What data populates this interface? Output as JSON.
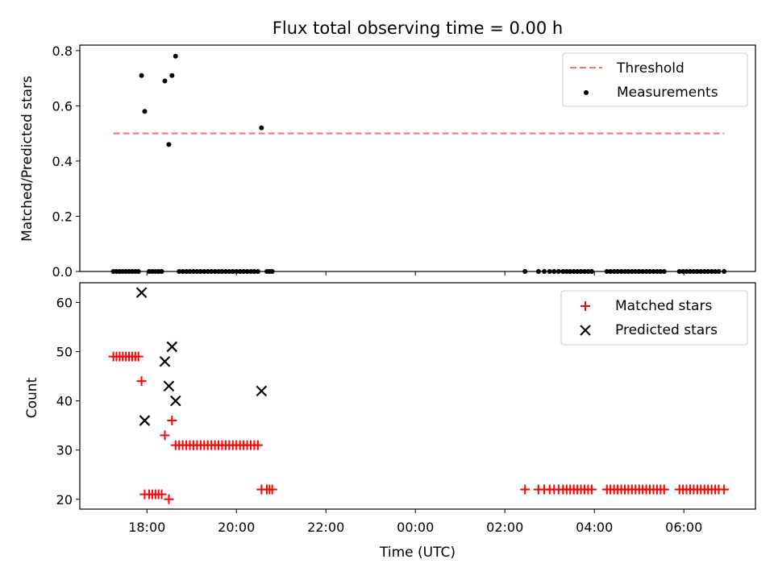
{
  "chart_data": [
    {
      "type": "scatter",
      "title": "Flux total observing time = 0.00 h",
      "xlabel": "",
      "ylabel": "Matched/Predicted stars",
      "xlim": [
        16.5,
        31.6
      ],
      "ylim": [
        0.0,
        0.82
      ],
      "x_unit": "hours since 00:00 of the first night (UTC)",
      "yticks": [
        0.0,
        0.2,
        0.4,
        0.6,
        0.8
      ],
      "ytick_labels": [
        "0.0",
        "0.2",
        "0.4",
        "0.6",
        "0.8"
      ],
      "legend": {
        "position": "top-right",
        "entries": [
          "Threshold",
          "Measurements"
        ]
      },
      "threshold": {
        "name": "Threshold",
        "y": 0.5,
        "x_range": [
          17.25,
          30.9
        ],
        "color": "#ff7070",
        "style": "dashed"
      },
      "series": [
        {
          "name": "Measurements",
          "color": "#000000",
          "marker": "dot",
          "points": [
            [
              17.25,
              0.0
            ],
            [
              17.32,
              0.0
            ],
            [
              17.39,
              0.0
            ],
            [
              17.46,
              0.0
            ],
            [
              17.53,
              0.0
            ],
            [
              17.6,
              0.0
            ],
            [
              17.67,
              0.0
            ],
            [
              17.74,
              0.0
            ],
            [
              17.81,
              0.0
            ],
            [
              17.88,
              0.71
            ],
            [
              17.95,
              0.58
            ],
            [
              18.05,
              0.0
            ],
            [
              18.12,
              0.0
            ],
            [
              18.19,
              0.0
            ],
            [
              18.26,
              0.0
            ],
            [
              18.33,
              0.0
            ],
            [
              18.4,
              0.69
            ],
            [
              18.49,
              0.46
            ],
            [
              18.56,
              0.71
            ],
            [
              18.64,
              0.78
            ],
            [
              18.72,
              0.0
            ],
            [
              18.8,
              0.0
            ],
            [
              18.88,
              0.0
            ],
            [
              18.96,
              0.0
            ],
            [
              19.04,
              0.0
            ],
            [
              19.12,
              0.0
            ],
            [
              19.2,
              0.0
            ],
            [
              19.28,
              0.0
            ],
            [
              19.36,
              0.0
            ],
            [
              19.44,
              0.0
            ],
            [
              19.52,
              0.0
            ],
            [
              19.6,
              0.0
            ],
            [
              19.68,
              0.0
            ],
            [
              19.76,
              0.0
            ],
            [
              19.84,
              0.0
            ],
            [
              19.92,
              0.0
            ],
            [
              20.0,
              0.0
            ],
            [
              20.08,
              0.0
            ],
            [
              20.16,
              0.0
            ],
            [
              20.24,
              0.0
            ],
            [
              20.32,
              0.0
            ],
            [
              20.4,
              0.0
            ],
            [
              20.48,
              0.0
            ],
            [
              20.56,
              0.52
            ],
            [
              20.68,
              0.0
            ],
            [
              20.74,
              0.0
            ],
            [
              20.8,
              0.0
            ],
            [
              26.45,
              0.0
            ],
            [
              26.75,
              0.0
            ],
            [
              26.88,
              0.0
            ],
            [
              27.0,
              0.0
            ],
            [
              27.1,
              0.0
            ],
            [
              27.2,
              0.0
            ],
            [
              27.3,
              0.0
            ],
            [
              27.38,
              0.0
            ],
            [
              27.46,
              0.0
            ],
            [
              27.54,
              0.0
            ],
            [
              27.62,
              0.0
            ],
            [
              27.7,
              0.0
            ],
            [
              27.78,
              0.0
            ],
            [
              27.86,
              0.0
            ],
            [
              27.94,
              0.0
            ],
            [
              28.28,
              0.0
            ],
            [
              28.36,
              0.0
            ],
            [
              28.44,
              0.0
            ],
            [
              28.52,
              0.0
            ],
            [
              28.6,
              0.0
            ],
            [
              28.68,
              0.0
            ],
            [
              28.76,
              0.0
            ],
            [
              28.84,
              0.0
            ],
            [
              28.92,
              0.0
            ],
            [
              29.0,
              0.0
            ],
            [
              29.08,
              0.0
            ],
            [
              29.16,
              0.0
            ],
            [
              29.24,
              0.0
            ],
            [
              29.32,
              0.0
            ],
            [
              29.4,
              0.0
            ],
            [
              29.48,
              0.0
            ],
            [
              29.56,
              0.0
            ],
            [
              29.9,
              0.0
            ],
            [
              29.98,
              0.0
            ],
            [
              30.06,
              0.0
            ],
            [
              30.14,
              0.0
            ],
            [
              30.22,
              0.0
            ],
            [
              30.3,
              0.0
            ],
            [
              30.38,
              0.0
            ],
            [
              30.46,
              0.0
            ],
            [
              30.54,
              0.0
            ],
            [
              30.62,
              0.0
            ],
            [
              30.7,
              0.0
            ],
            [
              30.78,
              0.0
            ],
            [
              30.9,
              0.0
            ]
          ]
        }
      ]
    },
    {
      "type": "scatter",
      "title": "",
      "xlabel": "Time (UTC)",
      "ylabel": "Count",
      "xlim": [
        16.5,
        31.6
      ],
      "ylim": [
        18.0,
        64.0
      ],
      "x_unit": "hours since 00:00 of the first night (UTC)",
      "xticks": [
        18,
        20,
        22,
        24,
        26,
        28,
        30
      ],
      "xtick_labels": [
        "18:00",
        "20:00",
        "22:00",
        "00:00",
        "02:00",
        "04:00",
        "06:00"
      ],
      "yticks": [
        20,
        30,
        40,
        50,
        60
      ],
      "ytick_labels": [
        "20",
        "30",
        "40",
        "50",
        "60"
      ],
      "legend": {
        "position": "top-right",
        "entries": [
          "Matched stars",
          "Predicted stars"
        ]
      },
      "series": [
        {
          "name": "Matched stars",
          "color": "#ff0000",
          "marker": "plus",
          "points": [
            [
              17.25,
              49
            ],
            [
              17.32,
              49
            ],
            [
              17.39,
              49
            ],
            [
              17.46,
              49
            ],
            [
              17.53,
              49
            ],
            [
              17.6,
              49
            ],
            [
              17.67,
              49
            ],
            [
              17.74,
              49
            ],
            [
              17.81,
              49
            ],
            [
              17.88,
              44
            ],
            [
              17.95,
              21
            ],
            [
              18.05,
              21
            ],
            [
              18.12,
              21
            ],
            [
              18.19,
              21
            ],
            [
              18.26,
              21
            ],
            [
              18.33,
              21
            ],
            [
              18.4,
              33
            ],
            [
              18.49,
              20
            ],
            [
              18.56,
              36
            ],
            [
              18.64,
              31
            ],
            [
              18.72,
              31
            ],
            [
              18.8,
              31
            ],
            [
              18.88,
              31
            ],
            [
              18.96,
              31
            ],
            [
              19.04,
              31
            ],
            [
              19.12,
              31
            ],
            [
              19.2,
              31
            ],
            [
              19.28,
              31
            ],
            [
              19.36,
              31
            ],
            [
              19.44,
              31
            ],
            [
              19.52,
              31
            ],
            [
              19.6,
              31
            ],
            [
              19.68,
              31
            ],
            [
              19.76,
              31
            ],
            [
              19.84,
              31
            ],
            [
              19.92,
              31
            ],
            [
              20.0,
              31
            ],
            [
              20.08,
              31
            ],
            [
              20.16,
              31
            ],
            [
              20.24,
              31
            ],
            [
              20.32,
              31
            ],
            [
              20.4,
              31
            ],
            [
              20.48,
              31
            ],
            [
              20.56,
              22
            ],
            [
              20.68,
              22
            ],
            [
              20.74,
              22
            ],
            [
              20.8,
              22
            ],
            [
              26.45,
              22
            ],
            [
              26.75,
              22
            ],
            [
              26.88,
              22
            ],
            [
              27.0,
              22
            ],
            [
              27.1,
              22
            ],
            [
              27.2,
              22
            ],
            [
              27.3,
              22
            ],
            [
              27.38,
              22
            ],
            [
              27.46,
              22
            ],
            [
              27.54,
              22
            ],
            [
              27.62,
              22
            ],
            [
              27.7,
              22
            ],
            [
              27.78,
              22
            ],
            [
              27.86,
              22
            ],
            [
              27.94,
              22
            ],
            [
              28.28,
              22
            ],
            [
              28.36,
              22
            ],
            [
              28.44,
              22
            ],
            [
              28.52,
              22
            ],
            [
              28.6,
              22
            ],
            [
              28.68,
              22
            ],
            [
              28.76,
              22
            ],
            [
              28.84,
              22
            ],
            [
              28.92,
              22
            ],
            [
              29.0,
              22
            ],
            [
              29.08,
              22
            ],
            [
              29.16,
              22
            ],
            [
              29.24,
              22
            ],
            [
              29.32,
              22
            ],
            [
              29.4,
              22
            ],
            [
              29.48,
              22
            ],
            [
              29.56,
              22
            ],
            [
              29.9,
              22
            ],
            [
              29.98,
              22
            ],
            [
              30.06,
              22
            ],
            [
              30.14,
              22
            ],
            [
              30.22,
              22
            ],
            [
              30.3,
              22
            ],
            [
              30.38,
              22
            ],
            [
              30.46,
              22
            ],
            [
              30.54,
              22
            ],
            [
              30.62,
              22
            ],
            [
              30.7,
              22
            ],
            [
              30.78,
              22
            ],
            [
              30.9,
              22
            ]
          ]
        },
        {
          "name": "Predicted stars",
          "color": "#000000",
          "marker": "x",
          "points": [
            [
              17.88,
              62
            ],
            [
              17.95,
              36
            ],
            [
              18.4,
              48
            ],
            [
              18.49,
              43
            ],
            [
              18.56,
              51
            ],
            [
              18.64,
              40
            ],
            [
              20.56,
              42
            ]
          ]
        }
      ]
    }
  ]
}
